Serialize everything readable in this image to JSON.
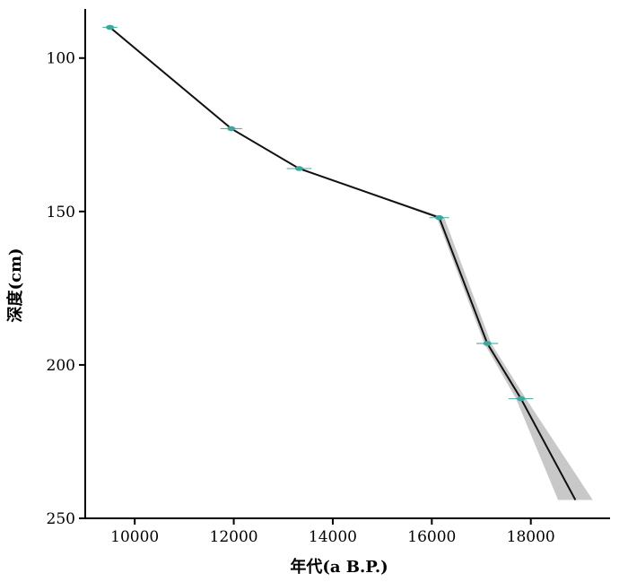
{
  "chart_data": {
    "type": "line",
    "title": "",
    "xlabel": "年代(a B.P.)",
    "ylabel": "深度(cm)",
    "xlim": [
      9000,
      19600
    ],
    "ylim": [
      250,
      84
    ],
    "y_inverted": true,
    "x_ticks": [
      10000,
      12000,
      14000,
      16000,
      18000
    ],
    "y_ticks": [
      100,
      150,
      200,
      250
    ],
    "grid": false,
    "legend": "none",
    "series": [
      {
        "type": "age-depth-model",
        "x": [
          9500,
          11950,
          13320,
          16150,
          17120,
          17800,
          18900
        ],
        "y": [
          90,
          123,
          136,
          152,
          193,
          211,
          244
        ],
        "band_lower": [
          9500,
          11950,
          13320,
          16100,
          17060,
          17700,
          18550
        ],
        "band_upper": [
          9500,
          11950,
          13320,
          16250,
          17200,
          17900,
          19250
        ],
        "line_color": "#111111",
        "band_color": "#c8c8c8"
      }
    ],
    "dated_samples": {
      "x": [
        9500,
        11950,
        13320,
        16150,
        17120,
        17800
      ],
      "y": [
        90,
        123,
        136,
        152,
        193,
        211
      ],
      "x_error": [
        150,
        220,
        250,
        200,
        220,
        250
      ],
      "color": "#3aa89c"
    }
  }
}
